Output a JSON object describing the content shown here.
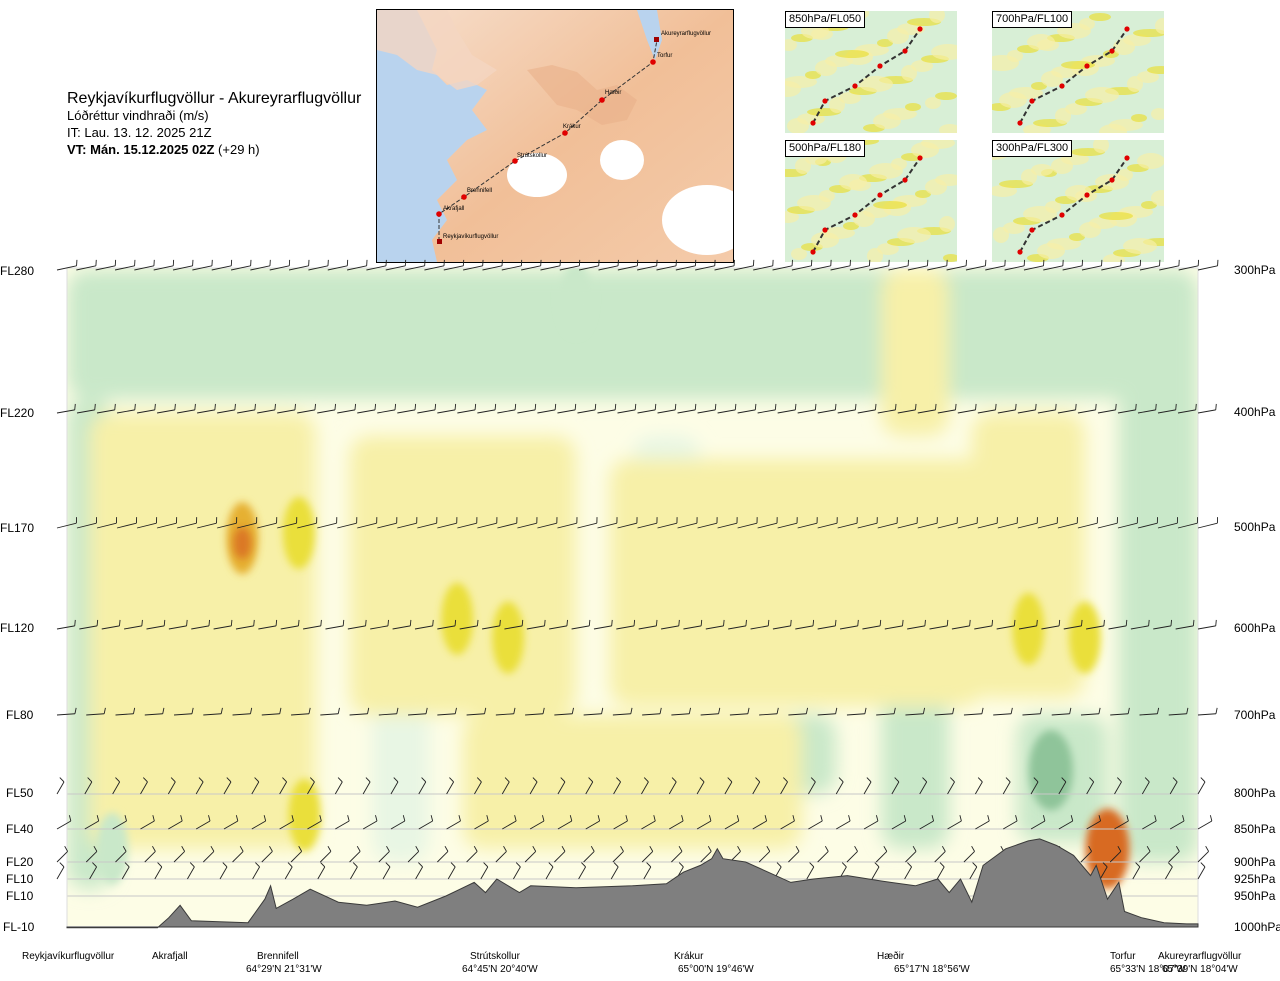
{
  "title": {
    "route": "Reykjavíkurflugvöllur - Akureyrarflugvöllur",
    "field": "Lóðréttur vindhraði (m/s)",
    "issue": "IT: Lau. 13. 12. 2025 21Z",
    "valid_bold": "VT: Mán. 15.12.2025 02Z",
    "valid_lead": "(+29 h)"
  },
  "map": {
    "waypoints": [
      "Akureyrarflugvöllur",
      "Torfur",
      "Hæðir",
      "Krákur",
      "Strútskollur",
      "Brennifell",
      "Akrafjall",
      "Reykjavíkurflugvöllur"
    ]
  },
  "mini_maps": [
    {
      "label": "850hPa/FL050"
    },
    {
      "label": "700hPa/FL100"
    },
    {
      "label": "500hPa/FL180"
    },
    {
      "label": "300hPa/FL300"
    }
  ],
  "levels": [
    {
      "fl": "FL280",
      "hpa": "300hPa"
    },
    {
      "fl": "FL220",
      "hpa": "400hPa"
    },
    {
      "fl": "FL170",
      "hpa": "500hPa"
    },
    {
      "fl": "FL120",
      "hpa": "600hPa"
    },
    {
      "fl": "FL80",
      "hpa": "700hPa"
    },
    {
      "fl": "FL50",
      "hpa": "800hPa"
    },
    {
      "fl": "FL40",
      "hpa": "850hPa"
    },
    {
      "fl": "FL20",
      "hpa": "900hPa"
    },
    {
      "fl": "FL10",
      "hpa": "925hPa"
    },
    {
      "fl": "FL10",
      "hpa": "950hPa"
    },
    {
      "fl": "FL-10",
      "hpa": "1000hPa"
    }
  ],
  "locations": [
    {
      "name": "Reykjavíkurflugvöllur",
      "coord": ""
    },
    {
      "name": "Akrafjall",
      "coord": ""
    },
    {
      "name": "Brennifell",
      "coord": "64°29'N 21°31'W"
    },
    {
      "name": "Strútskollur",
      "coord": "64°45'N 20°40'W"
    },
    {
      "name": "Krákur",
      "coord": "65°00'N 19°46'W"
    },
    {
      "name": "Hæðir",
      "coord": "65°17'N 18°56'W"
    },
    {
      "name": "Torfur",
      "coord": "65°33'N 18°07'W"
    },
    {
      "name": "Akureyrarflugvöllur",
      "coord": "65°39'N 18°04'W"
    }
  ],
  "colors": {
    "strong_down": "#8fc49a",
    "down": "#c9e8c9",
    "weak_down": "#e8f6e4",
    "neutral": "#fdfde6",
    "weak_up": "#f7f0a8",
    "up": "#eadf3a",
    "strong_up": "#e6b030",
    "very_strong_up": "#d86a20",
    "terrain": "#7f7f7f",
    "waypoint": "#e00000"
  },
  "chart_data": {
    "type": "heatmap",
    "title": "Reykjavíkurflugvöllur - Akureyrarflugvöllur",
    "variable": "Lóðréttur vindhraði (m/s)",
    "y_levels_hpa": [
      300,
      400,
      500,
      600,
      700,
      800,
      850,
      900,
      925,
      950,
      1000
    ],
    "terrain_profile": [
      {
        "x": 0.0,
        "hpa": 1001
      },
      {
        "x": 0.08,
        "hpa": 1001
      },
      {
        "x": 0.09,
        "hpa": 985
      },
      {
        "x": 0.1,
        "hpa": 965
      },
      {
        "x": 0.11,
        "hpa": 990
      },
      {
        "x": 0.16,
        "hpa": 993
      },
      {
        "x": 0.175,
        "hpa": 955
      },
      {
        "x": 0.18,
        "hpa": 935
      },
      {
        "x": 0.185,
        "hpa": 970
      },
      {
        "x": 0.2,
        "hpa": 955
      },
      {
        "x": 0.215,
        "hpa": 940
      },
      {
        "x": 0.24,
        "hpa": 960
      },
      {
        "x": 0.265,
        "hpa": 965
      },
      {
        "x": 0.29,
        "hpa": 958
      },
      {
        "x": 0.31,
        "hpa": 968
      },
      {
        "x": 0.335,
        "hpa": 950
      },
      {
        "x": 0.36,
        "hpa": 930
      },
      {
        "x": 0.37,
        "hpa": 945
      },
      {
        "x": 0.38,
        "hpa": 925
      },
      {
        "x": 0.4,
        "hpa": 945
      },
      {
        "x": 0.41,
        "hpa": 935
      },
      {
        "x": 0.45,
        "hpa": 938
      },
      {
        "x": 0.5,
        "hpa": 935
      },
      {
        "x": 0.53,
        "hpa": 932
      },
      {
        "x": 0.545,
        "hpa": 915
      },
      {
        "x": 0.56,
        "hpa": 905
      },
      {
        "x": 0.57,
        "hpa": 895
      },
      {
        "x": 0.575,
        "hpa": 880
      },
      {
        "x": 0.58,
        "hpa": 895
      },
      {
        "x": 0.6,
        "hpa": 900
      },
      {
        "x": 0.62,
        "hpa": 915
      },
      {
        "x": 0.64,
        "hpa": 930
      },
      {
        "x": 0.66,
        "hpa": 925
      },
      {
        "x": 0.69,
        "hpa": 920
      },
      {
        "x": 0.72,
        "hpa": 928
      },
      {
        "x": 0.75,
        "hpa": 935
      },
      {
        "x": 0.77,
        "hpa": 925
      },
      {
        "x": 0.78,
        "hpa": 945
      },
      {
        "x": 0.79,
        "hpa": 925
      },
      {
        "x": 0.8,
        "hpa": 960
      },
      {
        "x": 0.81,
        "hpa": 905
      },
      {
        "x": 0.83,
        "hpa": 880
      },
      {
        "x": 0.85,
        "hpa": 868
      },
      {
        "x": 0.86,
        "hpa": 865
      },
      {
        "x": 0.875,
        "hpa": 875
      },
      {
        "x": 0.89,
        "hpa": 890
      },
      {
        "x": 0.905,
        "hpa": 920
      },
      {
        "x": 0.91,
        "hpa": 905
      },
      {
        "x": 0.92,
        "hpa": 955
      },
      {
        "x": 0.93,
        "hpa": 930
      },
      {
        "x": 0.935,
        "hpa": 975
      },
      {
        "x": 0.95,
        "hpa": 985
      },
      {
        "x": 0.97,
        "hpa": 993
      },
      {
        "x": 0.99,
        "hpa": 995
      },
      {
        "x": 1.0,
        "hpa": 995
      }
    ],
    "features": [
      {
        "kind": "updraft",
        "center_x": 0.155,
        "center_hpa": 510,
        "strength": "strong_up"
      },
      {
        "kind": "updraft",
        "center_x": 0.205,
        "center_hpa": 505,
        "strength": "up"
      },
      {
        "kind": "updraft",
        "center_x": 0.345,
        "center_hpa": 590,
        "strength": "up"
      },
      {
        "kind": "updraft",
        "center_x": 0.39,
        "center_hpa": 610,
        "strength": "up"
      },
      {
        "kind": "updraft",
        "center_x": 0.21,
        "center_hpa": 830,
        "strength": "up"
      },
      {
        "kind": "updraft",
        "center_x": 0.92,
        "center_hpa": 880,
        "strength": "very_strong_up"
      },
      {
        "kind": "updraft",
        "center_x": 0.85,
        "center_hpa": 600,
        "strength": "up"
      },
      {
        "kind": "updraft",
        "center_x": 0.9,
        "center_hpa": 610,
        "strength": "up"
      },
      {
        "kind": "downdraft",
        "center_x": 0.87,
        "center_hpa": 770,
        "strength": "strong_down"
      },
      {
        "kind": "downdraft",
        "center_x": 0.04,
        "center_hpa": 880,
        "strength": "down"
      },
      {
        "kind": "downdraft",
        "center_x": 0.45,
        "center_hpa": 320,
        "strength": "down"
      }
    ]
  }
}
